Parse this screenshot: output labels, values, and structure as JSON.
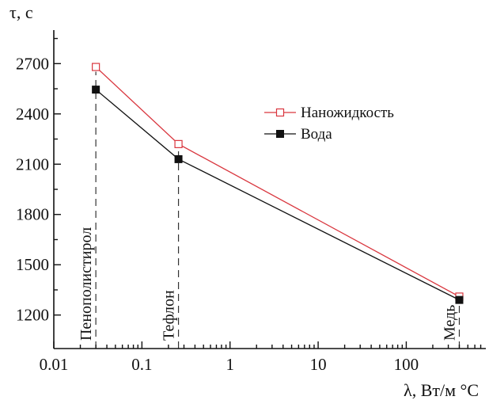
{
  "chart_data": {
    "type": "line",
    "ylabel": "τ, c",
    "xlabel": "λ, Вт/м °C",
    "x_scale": "log",
    "xlim": [
      0.01,
      800
    ],
    "ylim": [
      1000,
      2900
    ],
    "x_ticks": [
      {
        "value": 0.01,
        "label": "0.01"
      },
      {
        "value": 0.1,
        "label": "0.1"
      },
      {
        "value": 1,
        "label": "1"
      },
      {
        "value": 10,
        "label": "10"
      },
      {
        "value": 100,
        "label": "100"
      }
    ],
    "y_ticks": [
      {
        "value": 1200,
        "label": "1200"
      },
      {
        "value": 1500,
        "label": "1500"
      },
      {
        "value": 1800,
        "label": "1800"
      },
      {
        "value": 2100,
        "label": "2100"
      },
      {
        "value": 2400,
        "label": "2400"
      },
      {
        "value": 2700,
        "label": "2700"
      }
    ],
    "x": [
      0.03,
      0.26,
      400
    ],
    "series": [
      {
        "name": "Наножидкость",
        "values": [
          2680,
          2220,
          1310
        ],
        "color": "#d9363e",
        "marker": "open-square"
      },
      {
        "name": "Вода",
        "values": [
          2545,
          2130,
          1290
        ],
        "color": "#111111",
        "marker": "filled-square"
      }
    ],
    "vertical_lines": [
      {
        "x": 0.03,
        "label": "Пенополистирол"
      },
      {
        "x": 0.26,
        "label": "Тефлон"
      },
      {
        "x": 400,
        "label": "Медь"
      }
    ],
    "legend_position": "top-right",
    "grid": false
  }
}
